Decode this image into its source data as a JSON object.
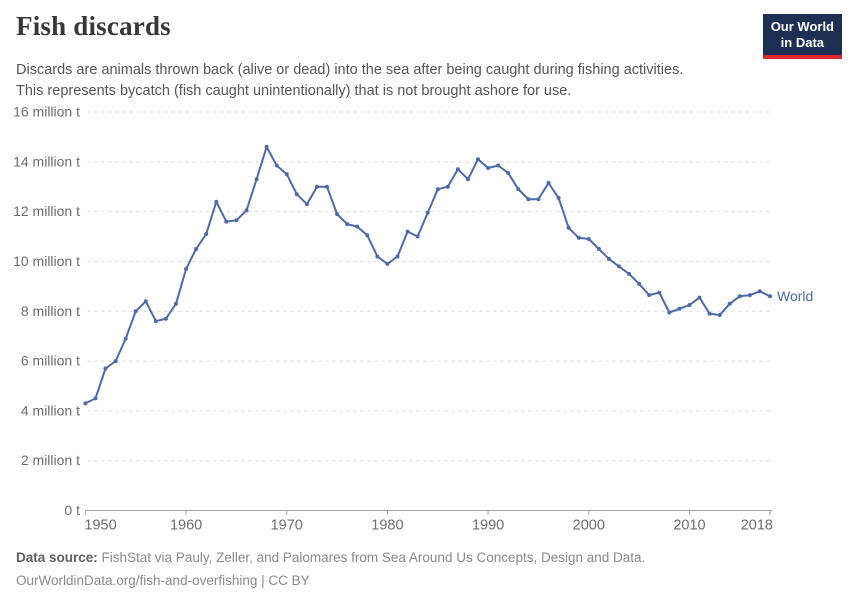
{
  "header": {
    "title": "Fish discards",
    "subtitle_line1": "Discards are animals thrown back (alive or dead) into the sea after being caught during fishing activities.",
    "subtitle_line2": "This represents bycatch (fish caught unintentionally) that is not brought ashore for use."
  },
  "logo": {
    "line1": "Our World",
    "line2": "in Data",
    "bg_color": "#1d3054",
    "accent_color": "#e0292e"
  },
  "footer": {
    "source_label": "Data source:",
    "source_text": " FishStat via Pauly, Zeller, and Palomares from Sea Around Us Concepts, Design and Data.",
    "license_line": "OurWorldinData.org/fish-and-overfishing | CC BY"
  },
  "chart_data": {
    "type": "line",
    "title": "Fish discards",
    "unit": "million t",
    "grid": "horizontal dashed",
    "legend_position": "end-of-line label",
    "end_label": "World",
    "xlim": [
      1950,
      2018
    ],
    "ylim": [
      0,
      16
    ],
    "x_ticks": [
      1950,
      1960,
      1970,
      1980,
      1990,
      2000,
      2010,
      2018
    ],
    "y_ticks": [
      {
        "value": 0,
        "label": "0 t"
      },
      {
        "value": 2,
        "label": "2 million t"
      },
      {
        "value": 4,
        "label": "4 million t"
      },
      {
        "value": 6,
        "label": "6 million t"
      },
      {
        "value": 8,
        "label": "8 million t"
      },
      {
        "value": 10,
        "label": "10 million t"
      },
      {
        "value": 12,
        "label": "12 million t"
      },
      {
        "value": 14,
        "label": "14 million t"
      },
      {
        "value": 16,
        "label": "16 million t"
      }
    ],
    "x": [
      1950,
      1951,
      1952,
      1953,
      1954,
      1955,
      1956,
      1957,
      1958,
      1959,
      1960,
      1961,
      1962,
      1963,
      1964,
      1965,
      1966,
      1967,
      1968,
      1969,
      1970,
      1971,
      1972,
      1973,
      1974,
      1975,
      1976,
      1977,
      1978,
      1979,
      1980,
      1981,
      1982,
      1983,
      1984,
      1985,
      1986,
      1987,
      1988,
      1989,
      1990,
      1991,
      1992,
      1993,
      1994,
      1995,
      1996,
      1997,
      1998,
      1999,
      2000,
      2001,
      2002,
      2003,
      2004,
      2005,
      2006,
      2007,
      2008,
      2009,
      2010,
      2011,
      2012,
      2013,
      2014,
      2015,
      2016,
      2017,
      2018
    ],
    "series": [
      {
        "name": "World",
        "color": "#4c6ba8",
        "values": [
          4.3,
          4.5,
          5.7,
          6.0,
          6.9,
          8.0,
          8.4,
          7.6,
          7.7,
          8.3,
          9.7,
          10.5,
          11.1,
          12.4,
          11.6,
          11.65,
          12.05,
          13.3,
          14.6,
          13.85,
          13.5,
          12.7,
          12.3,
          13.0,
          13.0,
          11.9,
          11.5,
          11.4,
          11.05,
          10.2,
          9.9,
          10.2,
          11.2,
          11.0,
          11.95,
          12.9,
          13.0,
          13.7,
          13.3,
          14.1,
          13.75,
          13.85,
          13.55,
          12.9,
          12.5,
          12.5,
          13.15,
          12.55,
          11.35,
          10.95,
          10.9,
          10.5,
          10.1,
          9.8,
          9.5,
          9.1,
          8.65,
          8.75,
          7.95,
          8.1,
          8.25,
          8.55,
          7.9,
          7.85,
          8.3,
          8.6,
          8.65,
          8.8,
          8.6
        ]
      }
    ]
  }
}
